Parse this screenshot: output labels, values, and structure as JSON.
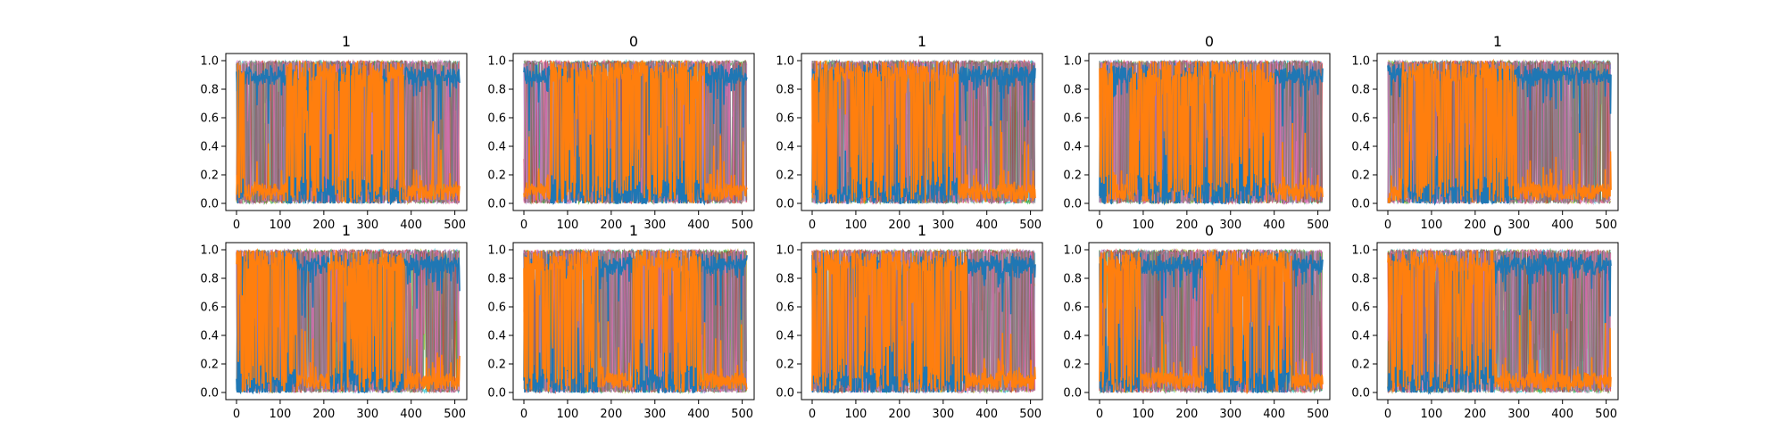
{
  "chart_data": {
    "type": "line",
    "grid": false,
    "legend": "none",
    "layout": "2 rows x 5 columns of subplots",
    "series_colors": [
      "#1f77b4",
      "#ff7f0e",
      "#17becf",
      "#bcbd22",
      "#2ca02c",
      "#d62728",
      "#9467bd",
      "#8c564b",
      "#e377c2",
      "#7f7f7f"
    ],
    "dominant_series": {
      "blue": "#1f77b4",
      "orange": "#ff7f0e"
    },
    "x_range": [
      0,
      511
    ],
    "y_range": [
      0.0,
      1.0
    ],
    "xticks": [
      "0",
      "100",
      "200",
      "300",
      "400",
      "500"
    ],
    "yticks": [
      "0.0",
      "0.2",
      "0.4",
      "0.6",
      "0.8",
      "1.0"
    ],
    "panels": [
      {
        "title": "1",
        "orange_segments": [
          [
            0,
            18,
            "high"
          ],
          [
            18,
            115,
            "low"
          ],
          [
            115,
            385,
            "high"
          ],
          [
            385,
            511,
            "low"
          ]
        ]
      },
      {
        "title": "0",
        "orange_segments": [
          [
            0,
            60,
            "low"
          ],
          [
            60,
            415,
            "high"
          ],
          [
            415,
            511,
            "low"
          ]
        ]
      },
      {
        "title": "1",
        "orange_segments": [
          [
            0,
            335,
            "high"
          ],
          [
            335,
            511,
            "low"
          ]
        ]
      },
      {
        "title": "0",
        "orange_segments": [
          [
            0,
            30,
            "high"
          ],
          [
            30,
            70,
            "low"
          ],
          [
            70,
            400,
            "high"
          ],
          [
            400,
            511,
            "low"
          ]
        ]
      },
      {
        "title": "1",
        "orange_segments": [
          [
            0,
            30,
            "low"
          ],
          [
            30,
            295,
            "high"
          ],
          [
            295,
            511,
            "low"
          ]
        ]
      },
      {
        "title": "1",
        "orange_segments": [
          [
            0,
            140,
            "high"
          ],
          [
            140,
            210,
            "low"
          ],
          [
            210,
            385,
            "high"
          ],
          [
            385,
            511,
            "low"
          ]
        ]
      },
      {
        "title": "1",
        "orange_segments": [
          [
            0,
            170,
            "high"
          ],
          [
            170,
            250,
            "low"
          ],
          [
            250,
            405,
            "high"
          ],
          [
            405,
            511,
            "low"
          ]
        ]
      },
      {
        "title": "1",
        "orange_segments": [
          [
            0,
            355,
            "high"
          ],
          [
            355,
            511,
            "low"
          ]
        ]
      },
      {
        "title": "0",
        "orange_segments": [
          [
            0,
            95,
            "high"
          ],
          [
            95,
            235,
            "low"
          ],
          [
            235,
            440,
            "high"
          ],
          [
            440,
            511,
            "low"
          ]
        ]
      },
      {
        "title": "0",
        "orange_segments": [
          [
            0,
            245,
            "high"
          ],
          [
            245,
            405,
            "low"
          ],
          [
            405,
            511,
            "low"
          ]
        ]
      }
    ]
  }
}
